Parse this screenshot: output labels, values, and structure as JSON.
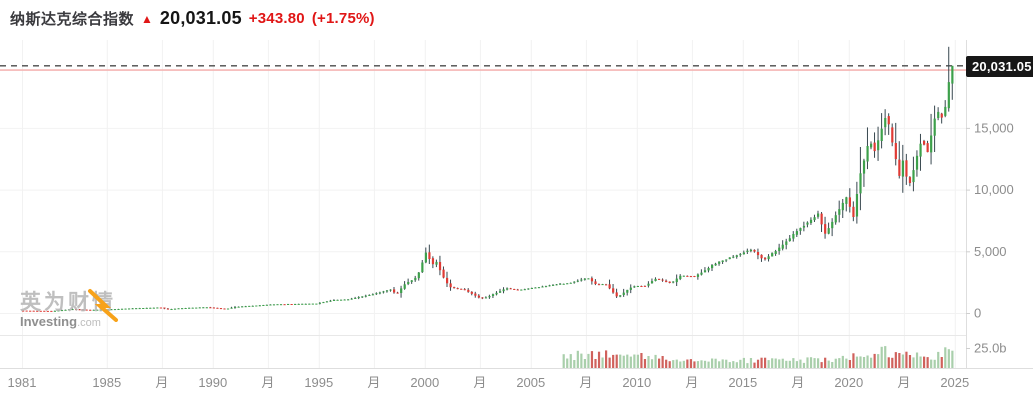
{
  "header": {
    "title": "纳斯达克综合指数",
    "arrow_icon": "▲",
    "price": "20,031.05",
    "change": "+343.80",
    "change_pct": "(+1.75%)"
  },
  "price_tag": "20,031.05",
  "watermark": {
    "line1": "英为财情",
    "brand_bold": "Investing",
    "brand_light": ".com"
  },
  "axis": {
    "y_ticks": [
      {
        "label": "15,000",
        "value": 15000
      },
      {
        "label": "10,000",
        "value": 10000
      },
      {
        "label": "5,000",
        "value": 5000
      },
      {
        "label": "0",
        "value": 0
      }
    ],
    "volume_tick": {
      "label": "25.0b",
      "value": 25
    },
    "x_ticks": [
      {
        "label": "1981",
        "year": 1981
      },
      {
        "label": "1985",
        "year": 1985
      },
      {
        "label": "月",
        "year": 1987.6
      },
      {
        "label": "1990",
        "year": 1990
      },
      {
        "label": "月",
        "year": 1992.6
      },
      {
        "label": "1995",
        "year": 1995
      },
      {
        "label": "月",
        "year": 1997.6
      },
      {
        "label": "2000",
        "year": 2000
      },
      {
        "label": "月",
        "year": 2002.6
      },
      {
        "label": "2005",
        "year": 2005
      },
      {
        "label": "月",
        "year": 2007.6
      },
      {
        "label": "2010",
        "year": 2010
      },
      {
        "label": "月",
        "year": 2012.6
      },
      {
        "label": "2015",
        "year": 2015
      },
      {
        "label": "月",
        "year": 2017.6
      },
      {
        "label": "2020",
        "year": 2020
      },
      {
        "label": "月",
        "year": 2022.6
      },
      {
        "label": "2025",
        "year": 2025
      }
    ]
  },
  "chart_data": {
    "type": "candlestick+volume",
    "title": "纳斯达克综合指数 (NASDAQ Composite, 1981-2025)",
    "x_range": [
      1981,
      2025
    ],
    "y_range": [
      0,
      21000
    ],
    "grid": true,
    "last_price": 20031.05,
    "previous_close": 19687.25,
    "candles_per_year": 6,
    "price_anchors": [
      [
        1981.0,
        195
      ],
      [
        1982.0,
        175
      ],
      [
        1982.6,
        168
      ],
      [
        1983.5,
        320
      ],
      [
        1984.3,
        250
      ],
      [
        1985.0,
        280
      ],
      [
        1986.3,
        375
      ],
      [
        1987.65,
        450
      ],
      [
        1987.95,
        295
      ],
      [
        1988.5,
        380
      ],
      [
        1989.8,
        470
      ],
      [
        1990.75,
        330
      ],
      [
        1991.2,
        500
      ],
      [
        1992.1,
        600
      ],
      [
        1993.0,
        700
      ],
      [
        1994.2,
        740
      ],
      [
        1995.0,
        760
      ],
      [
        1995.8,
        1050
      ],
      [
        1996.5,
        1100
      ],
      [
        1997.6,
        1500
      ],
      [
        1998.5,
        1900
      ],
      [
        1998.78,
        1510
      ],
      [
        1999.2,
        2400
      ],
      [
        1999.75,
        2900
      ],
      [
        2000.2,
        5048
      ],
      [
        2000.45,
        3850
      ],
      [
        2000.65,
        4200
      ],
      [
        2001.05,
        2650
      ],
      [
        2001.3,
        2100
      ],
      [
        2001.65,
        1950
      ],
      [
        2001.95,
        1930
      ],
      [
        2002.1,
        1780
      ],
      [
        2002.78,
        1150
      ],
      [
        2003.1,
        1330
      ],
      [
        2003.95,
        2000
      ],
      [
        2004.6,
        1870
      ],
      [
        2005.5,
        2100
      ],
      [
        2006.3,
        2320
      ],
      [
        2007.0,
        2450
      ],
      [
        2007.8,
        2850
      ],
      [
        2008.2,
        2300
      ],
      [
        2008.65,
        2350
      ],
      [
        2009.2,
        1280
      ],
      [
        2009.9,
        2150
      ],
      [
        2010.5,
        2200
      ],
      [
        2011.0,
        2780
      ],
      [
        2011.75,
        2400
      ],
      [
        2012.2,
        3050
      ],
      [
        2012.85,
        2950
      ],
      [
        2013.8,
        4000
      ],
      [
        2014.7,
        4600
      ],
      [
        2015.55,
        5150
      ],
      [
        2016.1,
        4300
      ],
      [
        2016.8,
        5200
      ],
      [
        2017.8,
        6850
      ],
      [
        2018.7,
        8050
      ],
      [
        2018.98,
        6350
      ],
      [
        2019.6,
        8200
      ],
      [
        2020.12,
        9780
      ],
      [
        2020.24,
        6860
      ],
      [
        2020.65,
        11200
      ],
      [
        2021.1,
        14050
      ],
      [
        2021.35,
        13100
      ],
      [
        2021.88,
        16150
      ],
      [
        2022.25,
        13100
      ],
      [
        2022.5,
        11050
      ],
      [
        2022.62,
        12600
      ],
      [
        2022.95,
        10250
      ],
      [
        2023.55,
        14150
      ],
      [
        2023.83,
        12950
      ],
      [
        2024.25,
        16400
      ],
      [
        2024.6,
        15750
      ],
      [
        2024.8,
        18200
      ],
      [
        2024.95,
        20031.05
      ]
    ],
    "volume_unit": "billions",
    "volume_start_year": 2006.4,
    "volume_anchors": [
      [
        2006.4,
        12
      ],
      [
        2007.2,
        16
      ],
      [
        2008.0,
        18
      ],
      [
        2008.8,
        17
      ],
      [
        2009.5,
        15
      ],
      [
        2010.5,
        13
      ],
      [
        2011.5,
        12
      ],
      [
        2012.5,
        9
      ],
      [
        2013.5,
        9
      ],
      [
        2014.5,
        9
      ],
      [
        2015.5,
        10
      ],
      [
        2016.5,
        10
      ],
      [
        2017.5,
        9
      ],
      [
        2018.5,
        11
      ],
      [
        2019.5,
        10
      ],
      [
        2020.2,
        18
      ],
      [
        2020.8,
        15
      ],
      [
        2021.3,
        23
      ],
      [
        2021.7,
        20
      ],
      [
        2022.3,
        18
      ],
      [
        2022.8,
        15
      ],
      [
        2023.4,
        15
      ],
      [
        2023.9,
        16
      ],
      [
        2024.4,
        18
      ],
      [
        2024.9,
        22
      ]
    ]
  },
  "colors": {
    "up": "#3da04b",
    "down": "#e03a34",
    "wick": "#37474f",
    "accent_red": "#e01616",
    "volume_up": "#a9cfab",
    "volume_down": "#d0615c",
    "price_line_dash": "#4a4a4a",
    "prev_close_line": "#f5b6b4",
    "grid": "#f2f2f2",
    "axis_line": "#dedede",
    "tick_text": "#8d8d8d",
    "tag_bg": "#171717",
    "watermark_orange": "#f7a21a"
  }
}
